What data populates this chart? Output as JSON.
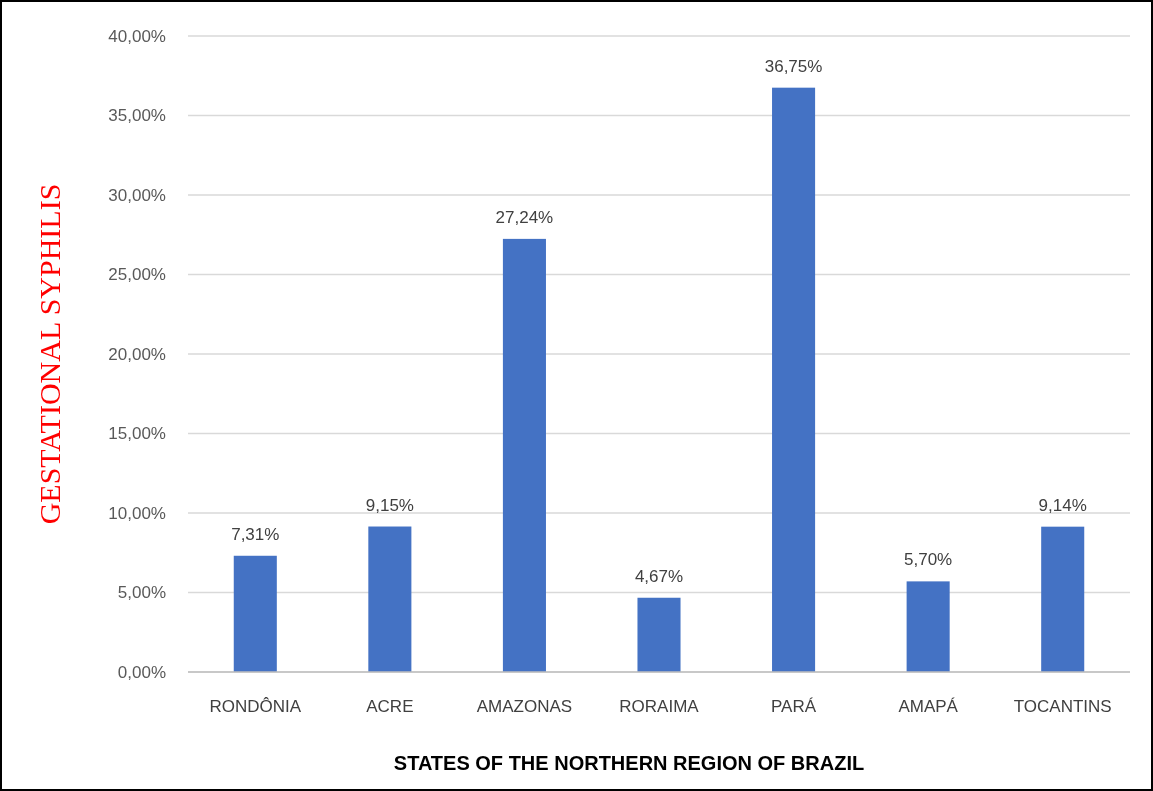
{
  "chart_data": {
    "type": "bar",
    "xlabel": "STATES OF THE NORTHERN REGION OF BRAZIL",
    "ylabel": "GESTATIONAL SYPHILIS",
    "categories": [
      "RONDÔNIA",
      "ACRE",
      "AMAZONAS",
      "RORAIMA",
      "PARÁ",
      "AMAPÁ",
      "TOCANTINS"
    ],
    "values": [
      7.31,
      9.15,
      27.24,
      4.67,
      36.75,
      5.7,
      9.14
    ],
    "value_labels": [
      "7,31%",
      "9,15%",
      "27,24%",
      "4,67%",
      "36,75%",
      "5,70%",
      "9,14%"
    ],
    "color": "#4472c4",
    "ylim": [
      0,
      40
    ],
    "yticks": [
      {
        "value": 0,
        "label": "0,00%"
      },
      {
        "value": 5,
        "label": "5,00%"
      },
      {
        "value": 10,
        "label": "10,00%"
      },
      {
        "value": 15,
        "label": "15,00%"
      },
      {
        "value": 20,
        "label": "20,00%"
      },
      {
        "value": 25,
        "label": "25,00%"
      },
      {
        "value": 30,
        "label": "30,00%"
      },
      {
        "value": 35,
        "label": "35,00%"
      },
      {
        "value": 40,
        "label": "40,00%"
      }
    ],
    "grid": "y"
  }
}
